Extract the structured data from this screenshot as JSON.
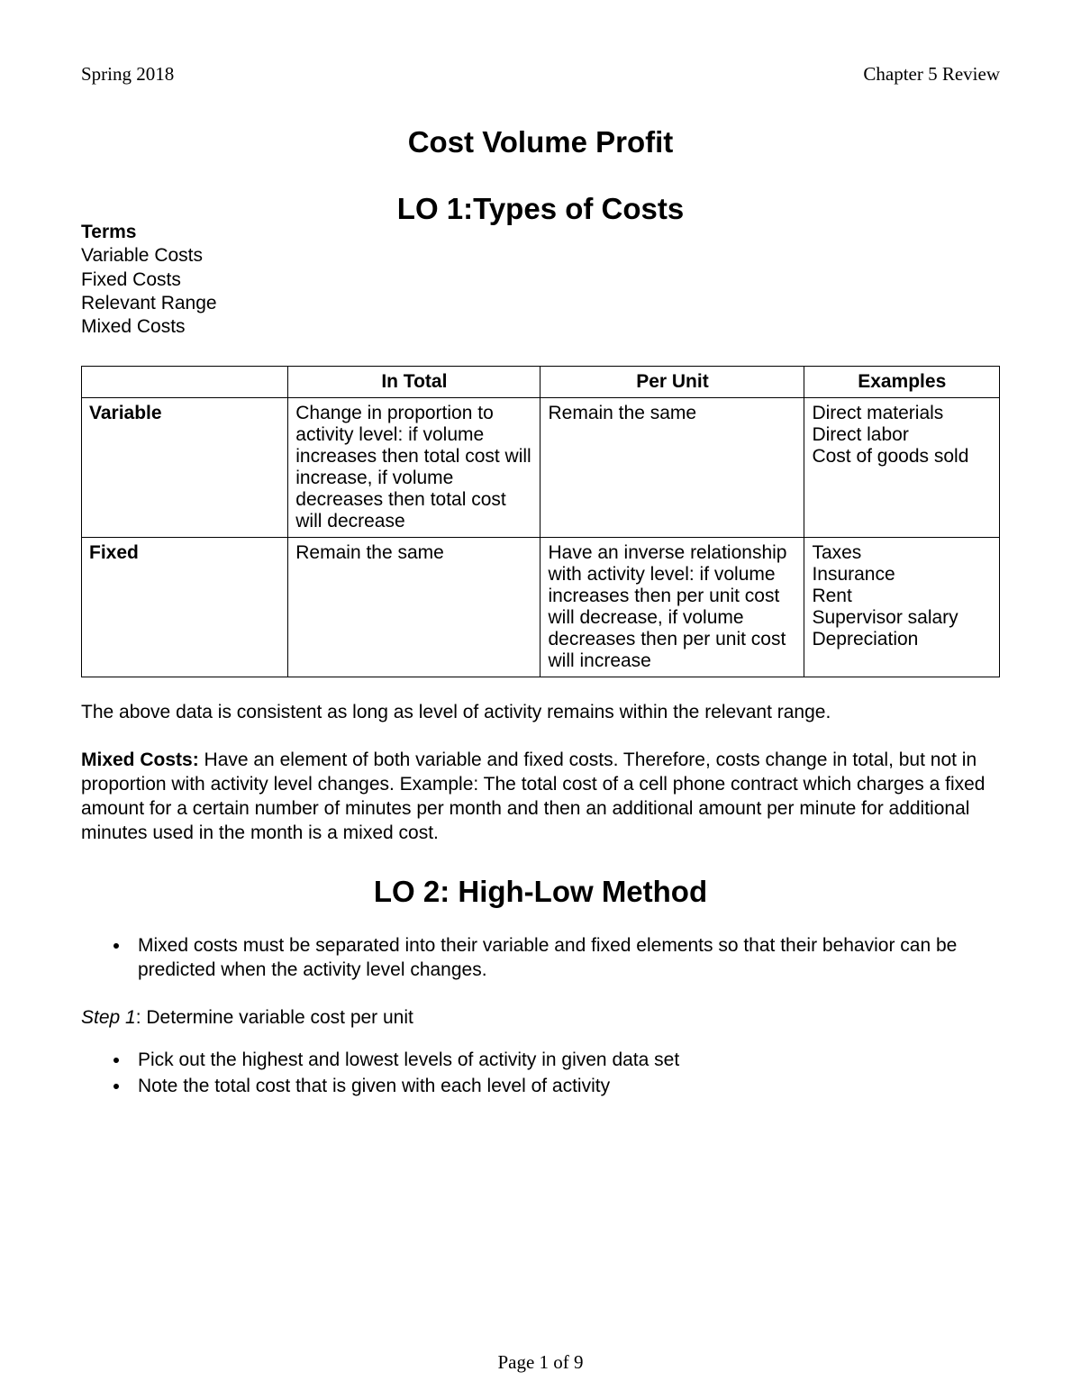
{
  "header": {
    "left": "Spring 2018",
    "right": "Chapter 5 Review"
  },
  "titles": {
    "main": "Cost Volume Profit",
    "lo1": "LO 1:Types of Costs",
    "lo2": "LO 2: High-Low Method"
  },
  "terms": {
    "heading": "Terms",
    "items": [
      "Variable Costs",
      "Fixed Costs",
      "Relevant Range",
      "Mixed Costs"
    ]
  },
  "cost_table": {
    "headers": [
      "",
      "In Total",
      "Per Unit",
      "Examples"
    ],
    "rows": [
      {
        "label": "Variable",
        "in_total": "Change in proportion to activity level: if volume increases then total cost will increase, if volume decreases then total cost will decrease",
        "per_unit": "Remain the same",
        "examples": "Direct materials\nDirect labor\nCost of goods sold"
      },
      {
        "label": "Fixed",
        "in_total": "Remain the same",
        "per_unit": "Have an inverse relationship with activity level:  if volume increases then per unit cost will decrease, if volume decreases then per unit cost will increase",
        "examples": "Taxes\nInsurance\nRent\nSupervisor salary\nDepreciation"
      }
    ]
  },
  "paragraphs": {
    "relevant_range": "The above data is consistent as long as level of activity remains within the relevant range.",
    "mixed_label": "Mixed Costs:",
    "mixed_body": "  Have an element of both variable and fixed costs. Therefore, costs change in total, but not in proportion with activity level changes. Example: The total cost of a cell phone contract which charges a fixed amount for a certain number of minutes per month and then an additional amount per minute for additional minutes used in the month is a mixed cost."
  },
  "lo2": {
    "intro_bullet": "Mixed costs must be separated into their variable and fixed elements so that their behavior can be predicted when the activity level changes.",
    "step1_label": "Step 1",
    "step1_text": ": Determine variable cost per unit",
    "step1_bullets": [
      "Pick out the highest and lowest levels of activity in given data set",
      "Note the total cost that is given with each level of activity"
    ]
  },
  "footer": "Page 1 of 9"
}
